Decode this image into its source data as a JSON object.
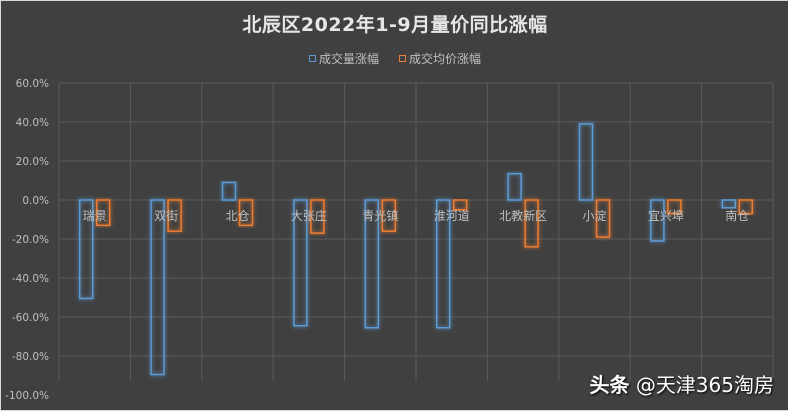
{
  "chart_data": {
    "type": "bar",
    "title": "北辰区2022年1-9月量价同比涨幅",
    "xlabel": "",
    "ylabel": "",
    "ylim": [
      -100,
      60
    ],
    "yticks": [
      "60.0%",
      "40.0%",
      "20.0%",
      "0.0%",
      "-20.0%",
      "-40.0%",
      "-60.0%",
      "-80.0%",
      "-100.0%"
    ],
    "ytick_values": [
      60,
      40,
      20,
      0,
      -20,
      -40,
      -60,
      -80,
      -100
    ],
    "grid": true,
    "legend_position": "top",
    "categories": [
      "瑞景",
      "双街",
      "北仓",
      "大张庄",
      "青光镇",
      "淮河道",
      "北教新区",
      "小淀",
      "宜兴埠",
      "南仓"
    ],
    "series": [
      {
        "name": "成交量涨幅",
        "color": "#5b9bd5",
        "values": [
          -50.5,
          -89.5,
          9,
          -64.5,
          -65.5,
          -65.5,
          13.5,
          39,
          -21,
          -4
        ]
      },
      {
        "name": "成交均价涨幅",
        "color": "#ed7d31",
        "values": [
          -13,
          -16,
          -13,
          -17,
          -16,
          -5,
          -24,
          -19,
          -7,
          -7
        ]
      }
    ]
  },
  "watermark": {
    "brand": "头条",
    "handle": "@天津365淘房"
  },
  "colors": {
    "background": "#404040",
    "grid": "#5a5a5a",
    "text": "#bfbfbf",
    "title": "#e6e6e6"
  }
}
